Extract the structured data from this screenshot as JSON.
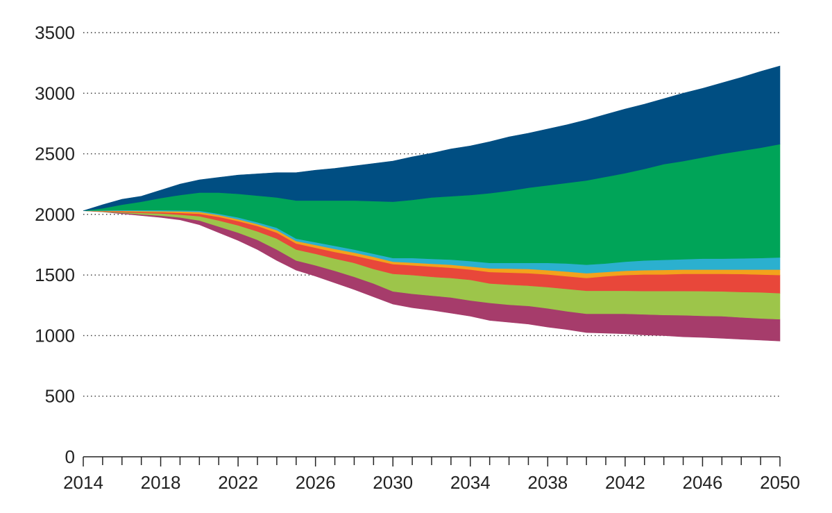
{
  "chart_data": {
    "type": "area",
    "stacking": "band",
    "x": [
      2014,
      2015,
      2016,
      2017,
      2018,
      2019,
      2020,
      2021,
      2022,
      2023,
      2024,
      2025,
      2026,
      2027,
      2028,
      2029,
      2030,
      2031,
      2032,
      2033,
      2034,
      2035,
      2036,
      2037,
      2038,
      2039,
      2040,
      2041,
      2042,
      2043,
      2044,
      2045,
      2046,
      2047,
      2048,
      2049,
      2050
    ],
    "xticks": [
      2014,
      2018,
      2022,
      2026,
      2030,
      2034,
      2038,
      2042,
      2046,
      2050
    ],
    "yticks": [
      0,
      500,
      1000,
      1500,
      2000,
      2500,
      3000,
      3500
    ],
    "ylim": [
      0,
      3500
    ],
    "xlim": [
      2014,
      2050
    ],
    "grid": "horizontal-dotted",
    "legend": "none",
    "title": "",
    "xlabel": "",
    "ylabel": "",
    "bands": [
      {
        "color": "#a63c6b",
        "lower": [
          2030,
          2020,
          2005,
          1990,
          1975,
          1955,
          1915,
          1850,
          1785,
          1710,
          1620,
          1540,
          1490,
          1435,
          1380,
          1320,
          1260,
          1230,
          1210,
          1185,
          1160,
          1125,
          1110,
          1095,
          1070,
          1050,
          1025,
          1020,
          1015,
          1005,
          1000,
          990,
          985,
          978,
          970,
          963,
          955
        ],
        "upper": [
          2030,
          2022,
          2012,
          2000,
          1990,
          1975,
          1950,
          1900,
          1850,
          1790,
          1710,
          1620,
          1580,
          1535,
          1485,
          1430,
          1365,
          1345,
          1330,
          1315,
          1290,
          1270,
          1255,
          1245,
          1225,
          1200,
          1180,
          1180,
          1180,
          1175,
          1170,
          1168,
          1163,
          1160,
          1150,
          1142,
          1135
        ]
      },
      {
        "color": "#9dc54a",
        "lower": [
          2030,
          2022,
          2012,
          2000,
          1990,
          1975,
          1950,
          1900,
          1850,
          1790,
          1710,
          1620,
          1580,
          1535,
          1485,
          1430,
          1365,
          1345,
          1330,
          1315,
          1290,
          1270,
          1255,
          1245,
          1225,
          1200,
          1180,
          1180,
          1180,
          1175,
          1170,
          1168,
          1163,
          1160,
          1150,
          1142,
          1135
        ],
        "upper": [
          2030,
          2025,
          2018,
          2012,
          2008,
          1998,
          1985,
          1950,
          1910,
          1860,
          1800,
          1710,
          1675,
          1635,
          1600,
          1550,
          1510,
          1500,
          1485,
          1475,
          1460,
          1430,
          1420,
          1412,
          1400,
          1385,
          1370,
          1370,
          1370,
          1368,
          1368,
          1368,
          1367,
          1365,
          1360,
          1357,
          1350
        ]
      },
      {
        "color": "#e8473a",
        "lower": [
          2030,
          2025,
          2018,
          2012,
          2008,
          1998,
          1985,
          1950,
          1910,
          1860,
          1800,
          1710,
          1675,
          1635,
          1600,
          1550,
          1510,
          1500,
          1485,
          1475,
          1460,
          1430,
          1420,
          1412,
          1400,
          1385,
          1370,
          1370,
          1370,
          1368,
          1368,
          1368,
          1367,
          1365,
          1360,
          1357,
          1350
        ],
        "upper": [
          2030,
          2028,
          2025,
          2020,
          2018,
          2012,
          2005,
          1980,
          1945,
          1905,
          1850,
          1760,
          1725,
          1690,
          1660,
          1625,
          1590,
          1580,
          1570,
          1560,
          1545,
          1525,
          1520,
          1515,
          1505,
          1490,
          1475,
          1490,
          1500,
          1505,
          1505,
          1510,
          1510,
          1510,
          1508,
          1504,
          1500
        ]
      },
      {
        "color": "#f3a21c",
        "lower": [
          2030,
          2028,
          2025,
          2020,
          2018,
          2012,
          2005,
          1980,
          1945,
          1905,
          1850,
          1760,
          1725,
          1690,
          1660,
          1625,
          1590,
          1580,
          1570,
          1560,
          1545,
          1525,
          1520,
          1515,
          1505,
          1490,
          1475,
          1490,
          1500,
          1505,
          1505,
          1510,
          1510,
          1510,
          1508,
          1504,
          1500
        ],
        "upper": [
          2030,
          2030,
          2030,
          2028,
          2027,
          2025,
          2020,
          1995,
          1960,
          1920,
          1870,
          1780,
          1748,
          1715,
          1685,
          1650,
          1610,
          1602,
          1593,
          1585,
          1570,
          1555,
          1553,
          1550,
          1540,
          1528,
          1515,
          1525,
          1535,
          1540,
          1542,
          1545,
          1545,
          1545,
          1545,
          1545,
          1545
        ]
      },
      {
        "color": "#2bb0cf",
        "lower": [
          2030,
          2030,
          2030,
          2028,
          2027,
          2025,
          2020,
          1995,
          1960,
          1920,
          1870,
          1780,
          1748,
          1715,
          1685,
          1650,
          1610,
          1602,
          1593,
          1585,
          1570,
          1555,
          1553,
          1550,
          1540,
          1528,
          1515,
          1525,
          1535,
          1540,
          1542,
          1545,
          1545,
          1545,
          1545,
          1545,
          1545
        ],
        "upper": [
          2030,
          2033,
          2035,
          2035,
          2035,
          2033,
          2030,
          2005,
          1975,
          1935,
          1890,
          1800,
          1770,
          1740,
          1710,
          1675,
          1640,
          1640,
          1633,
          1627,
          1615,
          1600,
          1600,
          1600,
          1600,
          1595,
          1585,
          1595,
          1610,
          1620,
          1625,
          1630,
          1635,
          1635,
          1637,
          1640,
          1645
        ]
      },
      {
        "color": "#00a458",
        "lower": [
          2030,
          2033,
          2035,
          2035,
          2035,
          2033,
          2030,
          2005,
          1975,
          1935,
          1890,
          1800,
          1770,
          1740,
          1710,
          1675,
          1640,
          1640,
          1633,
          1627,
          1615,
          1600,
          1600,
          1600,
          1600,
          1595,
          1585,
          1595,
          1610,
          1620,
          1625,
          1630,
          1635,
          1635,
          1637,
          1640,
          1645
        ],
        "upper": [
          2030,
          2050,
          2080,
          2105,
          2135,
          2160,
          2180,
          2180,
          2170,
          2155,
          2140,
          2115,
          2115,
          2115,
          2115,
          2110,
          2105,
          2120,
          2140,
          2150,
          2160,
          2175,
          2195,
          2220,
          2240,
          2260,
          2280,
          2310,
          2340,
          2375,
          2415,
          2440,
          2470,
          2500,
          2525,
          2550,
          2580
        ]
      },
      {
        "color": "#004e82",
        "lower": [
          2030,
          2050,
          2080,
          2105,
          2135,
          2160,
          2180,
          2180,
          2170,
          2155,
          2140,
          2115,
          2115,
          2115,
          2115,
          2110,
          2105,
          2120,
          2140,
          2150,
          2160,
          2175,
          2195,
          2220,
          2240,
          2260,
          2280,
          2310,
          2340,
          2375,
          2415,
          2440,
          2470,
          2500,
          2525,
          2550,
          2580
        ],
        "upper": [
          2030,
          2080,
          2125,
          2150,
          2200,
          2250,
          2285,
          2305,
          2325,
          2335,
          2345,
          2345,
          2365,
          2380,
          2400,
          2420,
          2440,
          2475,
          2505,
          2540,
          2565,
          2600,
          2640,
          2670,
          2705,
          2740,
          2780,
          2825,
          2870,
          2910,
          2955,
          3000,
          3040,
          3085,
          3130,
          3180,
          3225
        ]
      }
    ]
  }
}
